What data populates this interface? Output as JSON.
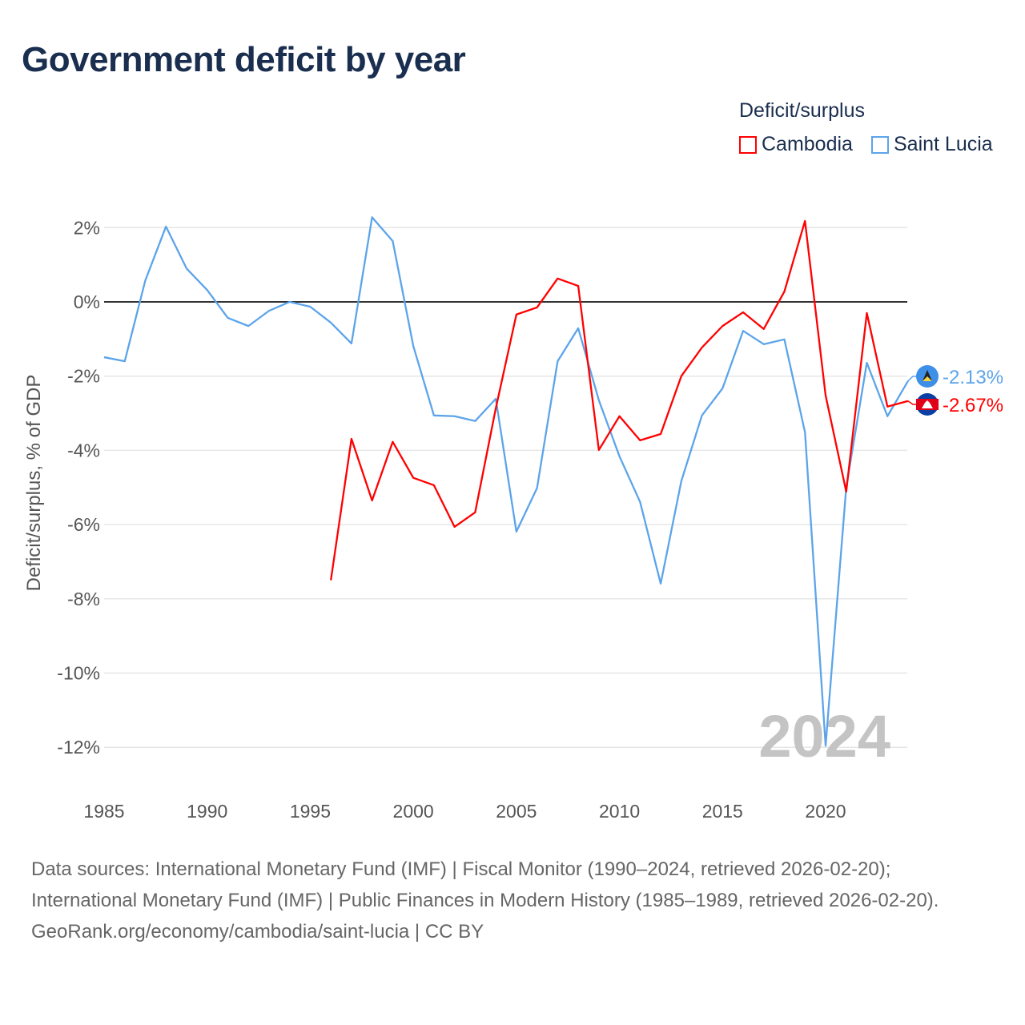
{
  "title": "Government deficit by year",
  "legend": {
    "title": "Deficit/surplus",
    "items": [
      {
        "name": "Cambodia",
        "color": "#ff0000"
      },
      {
        "name": "Saint Lucia",
        "color": "#5ca4ea"
      }
    ]
  },
  "watermark_year": "2024",
  "footer": {
    "sources": "Data sources: International Monetary Fund (IMF) | Fiscal Monitor (1990–2024, retrieved 2026-02-20); International Monetary Fund (IMF) | Public Finances in Modern History (1985–1989, retrieved 2026-02-20).",
    "credit": "GeoRank.org/economy/cambodia/saint-lucia | CC BY"
  },
  "chart_data": {
    "type": "line",
    "title": "Government deficit by year",
    "xlabel": "",
    "ylabel": "Deficit/surplus, % of GDP",
    "xlim": [
      1985,
      2024
    ],
    "ylim": [
      -13,
      2.5
    ],
    "xticks": [
      1985,
      1990,
      1995,
      2000,
      2005,
      2010,
      2015,
      2020
    ],
    "yticks": [
      2,
      0,
      -2,
      -4,
      -6,
      -8,
      -10,
      -12
    ],
    "ytick_labels": [
      "2%",
      "0%",
      "-2%",
      "-4%",
      "-6%",
      "-8%",
      "-10%",
      "-12%"
    ],
    "grid": true,
    "legend_position": "top-right",
    "series": [
      {
        "name": "Saint Lucia",
        "color": "#5ca4ea",
        "end_label": "-2.13%",
        "x": [
          1985,
          1986,
          1987,
          1988,
          1989,
          1990,
          1991,
          1992,
          1993,
          1994,
          1995,
          1996,
          1997,
          1998,
          1999,
          2000,
          2001,
          2002,
          2003,
          2004,
          2005,
          2006,
          2007,
          2008,
          2009,
          2010,
          2011,
          2012,
          2013,
          2014,
          2015,
          2016,
          2017,
          2018,
          2019,
          2020,
          2021,
          2022,
          2023,
          2024
        ],
        "values": [
          -1.49,
          -1.6,
          0.58,
          2.03,
          0.9,
          0.32,
          -0.43,
          -0.65,
          -0.24,
          0.0,
          -0.13,
          -0.56,
          -1.12,
          2.28,
          1.64,
          -1.19,
          -3.06,
          -3.08,
          -3.21,
          -2.61,
          -6.19,
          -5.02,
          -1.6,
          -0.71,
          -2.65,
          -4.16,
          -5.39,
          -7.59,
          -4.83,
          -3.06,
          -2.33,
          -0.78,
          -1.14,
          -1.01,
          -3.51,
          -11.96,
          -5.0,
          -1.64,
          -3.08,
          -2.13
        ]
      },
      {
        "name": "Cambodia",
        "color": "#ff0000",
        "end_label": "-2.67%",
        "x": [
          1996,
          1997,
          1998,
          1999,
          2000,
          2001,
          2002,
          2003,
          2004,
          2005,
          2006,
          2007,
          2008,
          2009,
          2010,
          2011,
          2012,
          2013,
          2014,
          2015,
          2016,
          2017,
          2018,
          2019,
          2020,
          2021,
          2022,
          2023,
          2024
        ],
        "values": [
          -7.5,
          -3.69,
          -5.35,
          -3.77,
          -4.74,
          -4.94,
          -6.06,
          -5.67,
          -2.87,
          -0.34,
          -0.15,
          0.63,
          0.43,
          -3.99,
          -3.08,
          -3.73,
          -3.56,
          -2.0,
          -1.23,
          -0.65,
          -0.28,
          -0.73,
          0.28,
          2.18,
          -2.52,
          -5.11,
          -0.3,
          -2.82,
          -2.67
        ]
      }
    ]
  }
}
